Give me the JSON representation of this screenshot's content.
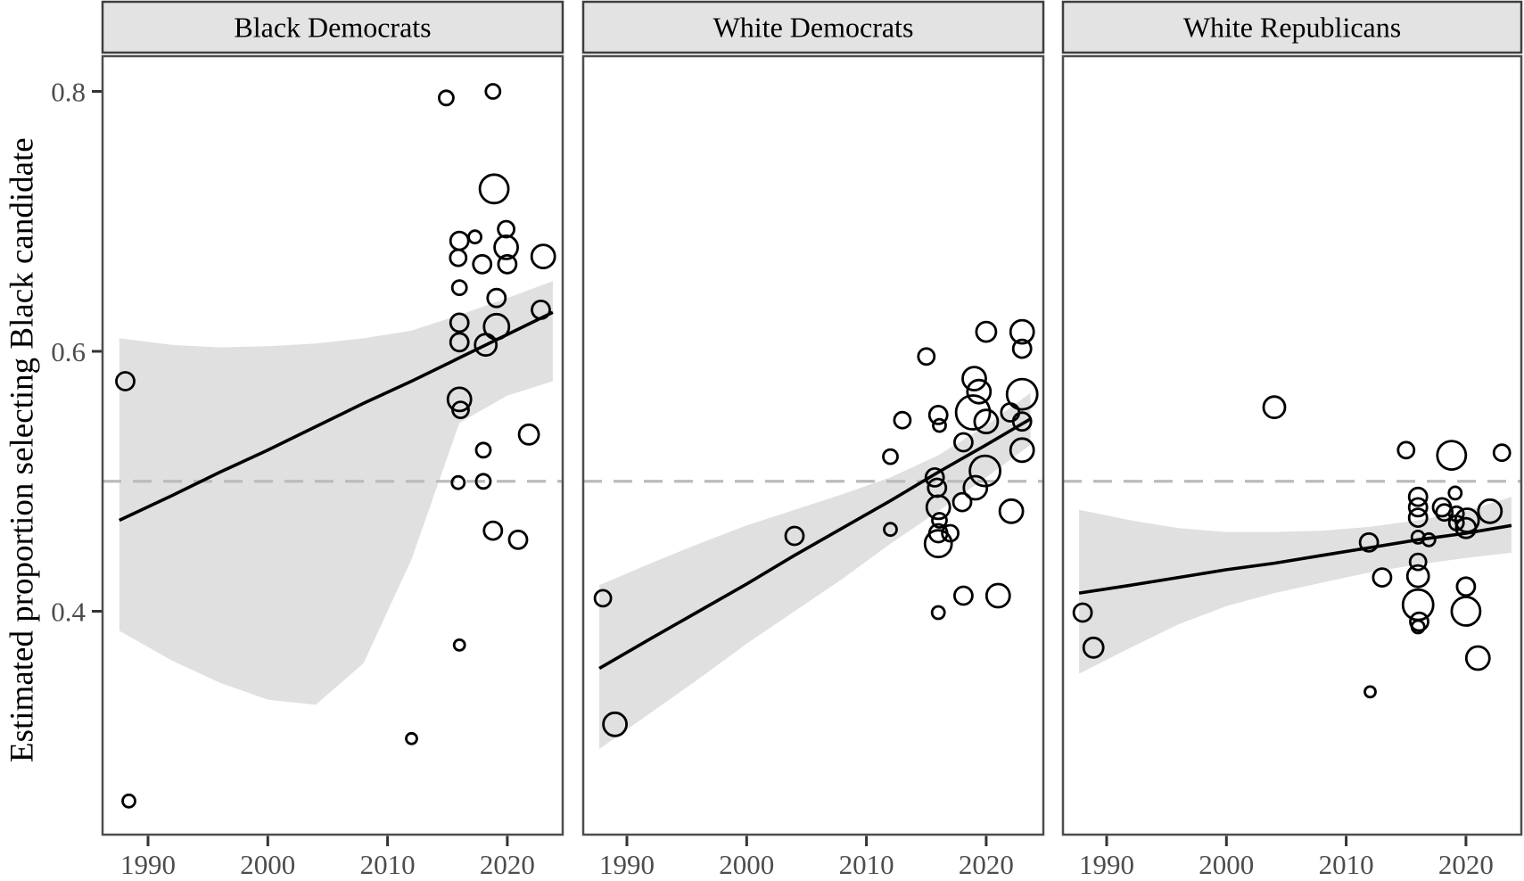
{
  "chart_data": {
    "type": "scatter",
    "faceted": true,
    "title": "",
    "xlabel": "",
    "ylabel": "Estimated proportion selecting Black candidate",
    "x_ticks": [
      1990,
      2000,
      2010,
      2020
    ],
    "y_ticks": [
      0.8,
      0.6,
      0.4
    ],
    "x_range": [
      1986.2,
      2024.7
    ],
    "y_range": [
      0.228,
      0.832
    ],
    "reference_line_y": 0.5,
    "grid": "off",
    "legend": "none",
    "point_style": "open black circles, area indicates study weight",
    "trend_style": "linear fit with shaded 95% confidence band",
    "colors": {
      "point_stroke": "#000000",
      "trend_line": "#000000",
      "ci_band": "#E0E0E0",
      "reference_dash": "#BBBBBB",
      "strip_bg": "#E3E3E3",
      "strip_border": "#3F3F3F",
      "strip_text": "#000000",
      "panel_border": "#4D4D4D",
      "tick_mark": "#333333",
      "tick_text": "#4D4D4D",
      "background": "#FFFFFF"
    },
    "facets": [
      {
        "label": "Black Democrats",
        "points": [
          [
            1988.1,
            0.577,
            10
          ],
          [
            1988.4,
            0.254,
            7
          ],
          [
            2012,
            0.302,
            6
          ],
          [
            2016,
            0.374,
            6
          ],
          [
            2014.9,
            0.795,
            8
          ],
          [
            2018.8,
            0.8,
            8
          ],
          [
            2018.9,
            0.725,
            16
          ],
          [
            2016,
            0.685,
            10
          ],
          [
            2017.3,
            0.688,
            7
          ],
          [
            2015.9,
            0.672,
            9
          ],
          [
            2019.9,
            0.694,
            9
          ],
          [
            2019.9,
            0.68,
            13
          ],
          [
            2020,
            0.667,
            10
          ],
          [
            2017.9,
            0.667,
            10
          ],
          [
            2023,
            0.673,
            13
          ],
          [
            2016,
            0.649,
            8
          ],
          [
            2019.1,
            0.641,
            10
          ],
          [
            2016,
            0.622,
            10
          ],
          [
            2016,
            0.607,
            10
          ],
          [
            2019.1,
            0.619,
            14
          ],
          [
            2018.2,
            0.605,
            12
          ],
          [
            2022.8,
            0.632,
            10
          ],
          [
            2016,
            0.563,
            13
          ],
          [
            2016.1,
            0.555,
            9
          ],
          [
            2018,
            0.524,
            8
          ],
          [
            2021.8,
            0.536,
            11
          ],
          [
            2015.9,
            0.499,
            7
          ],
          [
            2018,
            0.5,
            8
          ],
          [
            2018.8,
            0.462,
            10
          ],
          [
            2020.9,
            0.455,
            10
          ]
        ],
        "trend": {
          "x": [
            1987.6,
            1992,
            1996,
            2000,
            2004,
            2008,
            2012,
            2016,
            2020,
            2023.8
          ],
          "fit": [
            0.47,
            0.489,
            0.507,
            0.524,
            0.542,
            0.56,
            0.577,
            0.595,
            0.613,
            0.63
          ],
          "upper": [
            0.61,
            0.605,
            0.603,
            0.604,
            0.606,
            0.61,
            0.616,
            0.628,
            0.641,
            0.654
          ],
          "lower": [
            0.385,
            0.362,
            0.345,
            0.332,
            0.328,
            0.36,
            0.44,
            0.545,
            0.566,
            0.577
          ]
        }
      },
      {
        "label": "White Democrats",
        "points": [
          [
            1988,
            0.41,
            9
          ],
          [
            1989,
            0.313,
            13
          ],
          [
            2004,
            0.458,
            10
          ],
          [
            2012,
            0.519,
            8
          ],
          [
            2012,
            0.463,
            7
          ],
          [
            2013,
            0.547,
            9
          ],
          [
            2015,
            0.596,
            9
          ],
          [
            2016,
            0.551,
            10
          ],
          [
            2016.1,
            0.543,
            7
          ],
          [
            2015.7,
            0.503,
            10
          ],
          [
            2015.9,
            0.495,
            10
          ],
          [
            2016,
            0.48,
            13
          ],
          [
            2016.1,
            0.47,
            8
          ],
          [
            2016,
            0.46,
            10
          ],
          [
            2016,
            0.452,
            15
          ],
          [
            2016,
            0.399,
            7
          ],
          [
            2017,
            0.46,
            9
          ],
          [
            2018.1,
            0.53,
            10
          ],
          [
            2018,
            0.484,
            10
          ],
          [
            2018.1,
            0.412,
            10
          ],
          [
            2019,
            0.579,
            13
          ],
          [
            2019.4,
            0.569,
            13
          ],
          [
            2018.9,
            0.553,
            19
          ],
          [
            2019.1,
            0.495,
            13
          ],
          [
            2020,
            0.615,
            11
          ],
          [
            2020,
            0.546,
            13
          ],
          [
            2019.9,
            0.508,
            17
          ],
          [
            2021,
            0.412,
            13
          ],
          [
            2022,
            0.553,
            10
          ],
          [
            2022.1,
            0.477,
            13
          ],
          [
            2023,
            0.615,
            13
          ],
          [
            2023,
            0.602,
            10
          ],
          [
            2023,
            0.567,
            17
          ],
          [
            2023,
            0.546,
            10
          ],
          [
            2023,
            0.524,
            13
          ]
        ],
        "trend": {
          "x": [
            1987.7,
            1992,
            1996,
            2000,
            2004,
            2008,
            2012,
            2016,
            2020,
            2023.7
          ],
          "fit": [
            0.356,
            0.379,
            0.4,
            0.421,
            0.443,
            0.464,
            0.485,
            0.507,
            0.528,
            0.548
          ],
          "upper": [
            0.42,
            0.437,
            0.452,
            0.466,
            0.478,
            0.49,
            0.503,
            0.52,
            0.543,
            0.568
          ],
          "lower": [
            0.294,
            0.322,
            0.348,
            0.375,
            0.4,
            0.425,
            0.452,
            0.477,
            0.503,
            0.528
          ]
        }
      },
      {
        "label": "White Republicans",
        "points": [
          [
            1988,
            0.399,
            10
          ],
          [
            1988.9,
            0.372,
            11
          ],
          [
            2004,
            0.557,
            12
          ],
          [
            2011.9,
            0.453,
            10
          ],
          [
            2012,
            0.338,
            6
          ],
          [
            2013,
            0.426,
            10
          ],
          [
            2015,
            0.524,
            9
          ],
          [
            2018.8,
            0.52,
            16
          ],
          [
            2023,
            0.522,
            9
          ],
          [
            2016,
            0.488,
            10
          ],
          [
            2016,
            0.48,
            10
          ],
          [
            2016,
            0.472,
            10
          ],
          [
            2016,
            0.457,
            7
          ],
          [
            2016.9,
            0.455,
            7
          ],
          [
            2016,
            0.438,
            9
          ],
          [
            2016,
            0.427,
            12
          ],
          [
            2016,
            0.405,
            17
          ],
          [
            2016.1,
            0.392,
            10
          ],
          [
            2016,
            0.388,
            7
          ],
          [
            2018,
            0.48,
            10
          ],
          [
            2018.2,
            0.476,
            9
          ],
          [
            2019.1,
            0.491,
            7
          ],
          [
            2019.2,
            0.475,
            8
          ],
          [
            2019.2,
            0.468,
            8
          ],
          [
            2020.1,
            0.47,
            13
          ],
          [
            2020,
            0.464,
            11
          ],
          [
            2020,
            0.419,
            10
          ],
          [
            2020,
            0.4,
            16
          ],
          [
            2021,
            0.364,
            13
          ],
          [
            2022,
            0.477,
            13
          ]
        ],
        "trend": {
          "x": [
            1987.7,
            1992,
            1996,
            2000,
            2004,
            2008,
            2012,
            2016,
            2020,
            2023.8
          ],
          "fit": [
            0.414,
            0.42,
            0.426,
            0.432,
            0.437,
            0.443,
            0.449,
            0.455,
            0.46,
            0.466
          ],
          "upper": [
            0.478,
            0.47,
            0.464,
            0.461,
            0.461,
            0.462,
            0.465,
            0.47,
            0.477,
            0.488
          ],
          "lower": [
            0.352,
            0.372,
            0.39,
            0.404,
            0.414,
            0.422,
            0.43,
            0.436,
            0.441,
            0.445
          ]
        }
      }
    ]
  }
}
